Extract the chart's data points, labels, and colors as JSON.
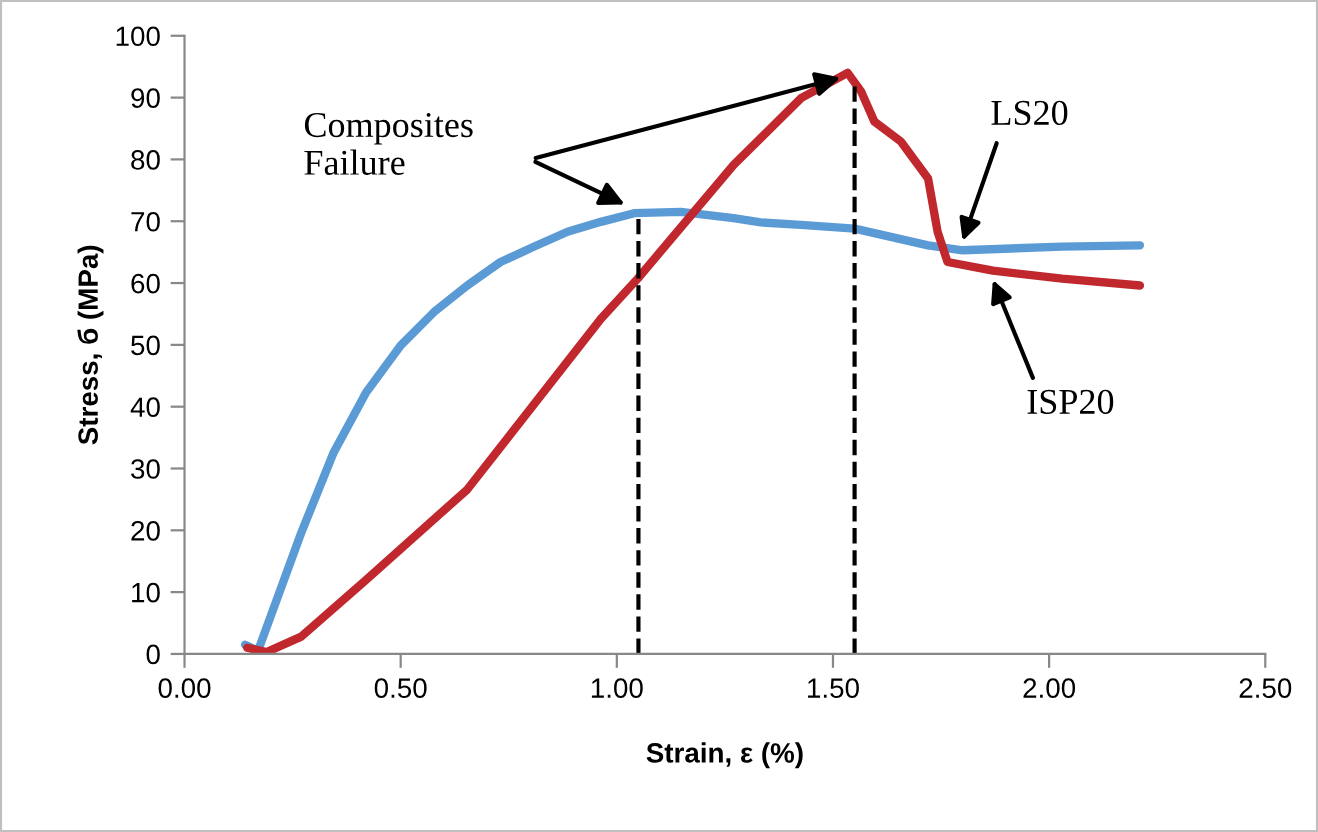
{
  "chart_data": {
    "type": "line",
    "xlabel": "Strain, ε (%)",
    "ylabel": "Stress, б (MPa)",
    "xlim": [
      0,
      2.5
    ],
    "xticks": [
      {
        "value": 0,
        "label": "0.00"
      },
      {
        "value": 0.5,
        "label": "0.50"
      },
      {
        "value": 1.0,
        "label": "1.00"
      },
      {
        "value": 1.5,
        "label": "1.50"
      },
      {
        "value": 2.0,
        "label": "2.00"
      },
      {
        "value": 2.5,
        "label": "2.50"
      }
    ],
    "ylim": [
      0,
      100
    ],
    "yticks": [
      0,
      10,
      20,
      30,
      40,
      50,
      60,
      70,
      80,
      90,
      100
    ],
    "grid": false,
    "legend": false,
    "series": [
      {
        "name": "LS20",
        "color": "#5b9bd5",
        "x": [
          0.14,
          0.17,
          0.27,
          0.345,
          0.42,
          0.5,
          0.577,
          0.654,
          0.731,
          0.809,
          0.886,
          0.963,
          1.04,
          1.148,
          1.27,
          1.333,
          1.426,
          1.55,
          1.72,
          1.8,
          2.03,
          2.21
        ],
        "values": [
          1.5,
          0.5,
          19.6,
          32.6,
          42.3,
          49.9,
          55.3,
          59.6,
          63.4,
          65.9,
          68.3,
          69.9,
          71.3,
          71.5,
          70.5,
          69.8,
          69.4,
          68.8,
          66.1,
          65.3,
          65.9,
          66.1
        ]
      },
      {
        "name": "ISP20",
        "color": "#c0282d",
        "x": [
          0.145,
          0.19,
          0.27,
          0.42,
          0.654,
          0.963,
          1.048,
          1.27,
          1.426,
          1.534,
          1.565,
          1.596,
          1.657,
          1.72,
          1.742,
          1.765,
          1.87,
          2.03,
          2.21
        ],
        "values": [
          1.0,
          0.3,
          2.8,
          12.0,
          26.6,
          54.2,
          60.7,
          79.1,
          89.9,
          94.0,
          91.0,
          86.1,
          82.9,
          76.9,
          68.3,
          63.4,
          62.0,
          60.7,
          59.6
        ]
      }
    ],
    "ref_lines": [
      {
        "axis": "x",
        "value": 1.05,
        "color": "#000000",
        "line_style": "dashed"
      },
      {
        "axis": "x",
        "value": 1.55,
        "color": "#000000",
        "line_style": "dashed"
      }
    ],
    "annotations": [
      "Composites\nFailure"
    ]
  }
}
